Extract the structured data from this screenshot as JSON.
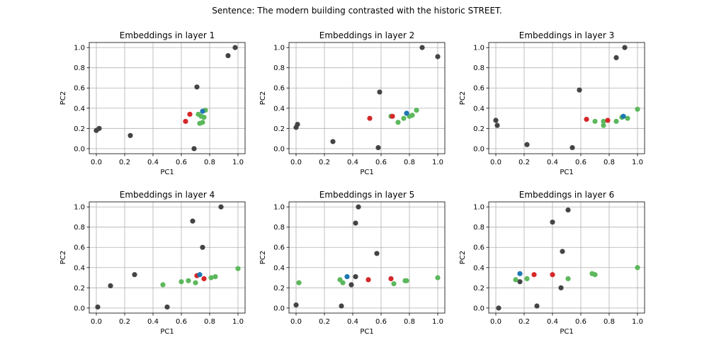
{
  "figure_title": "Sentence: The modern building contrasted with the historic STREET.",
  "colors": {
    "other": "#444444",
    "target": "#d62728",
    "blue": "#1f77b4",
    "green": "#5cb85c",
    "grid": "#b0b0b0"
  },
  "chart_data": [
    {
      "type": "scatter",
      "title": "Embeddings in layer 1",
      "xlabel": "PC1",
      "ylabel": "PC2",
      "xlim": [
        -0.05,
        1.05
      ],
      "ylim": [
        -0.05,
        1.05
      ],
      "xticks": [
        "0.0",
        "0.2",
        "0.4",
        "0.6",
        "0.8",
        "1.0"
      ],
      "yticks": [
        "0.0",
        "0.2",
        "0.4",
        "0.6",
        "0.8",
        "1.0"
      ],
      "grid": true,
      "series": [
        {
          "color_key": "other",
          "points": [
            [
              0.0,
              0.18
            ],
            [
              0.02,
              0.2
            ],
            [
              0.24,
              0.13
            ],
            [
              0.69,
              0.0
            ],
            [
              0.71,
              0.61
            ],
            [
              0.93,
              0.92
            ],
            [
              0.98,
              1.0
            ]
          ]
        },
        {
          "color_key": "green",
          "points": [
            [
              0.72,
              0.34
            ],
            [
              0.74,
              0.32
            ],
            [
              0.76,
              0.31
            ],
            [
              0.73,
              0.25
            ],
            [
              0.75,
              0.26
            ],
            [
              0.77,
              0.38
            ]
          ]
        },
        {
          "color_key": "target",
          "points": [
            [
              0.63,
              0.27
            ],
            [
              0.66,
              0.34
            ]
          ]
        },
        {
          "color_key": "blue",
          "points": [
            [
              0.75,
              0.37
            ]
          ]
        }
      ]
    },
    {
      "type": "scatter",
      "title": "Embeddings in layer 2",
      "xlabel": "PC1",
      "ylabel": "PC2",
      "xlim": [
        -0.05,
        1.05
      ],
      "ylim": [
        -0.05,
        1.05
      ],
      "xticks": [
        "0.0",
        "0.2",
        "0.4",
        "0.6",
        "0.8",
        "1.0"
      ],
      "yticks": [
        "0.0",
        "0.2",
        "0.4",
        "0.6",
        "0.8",
        "1.0"
      ],
      "grid": true,
      "series": [
        {
          "color_key": "other",
          "points": [
            [
              0.0,
              0.21
            ],
            [
              0.01,
              0.24
            ],
            [
              0.26,
              0.07
            ],
            [
              0.58,
              0.01
            ],
            [
              0.59,
              0.56
            ],
            [
              0.89,
              1.0
            ],
            [
              1.0,
              0.91
            ]
          ]
        },
        {
          "color_key": "green",
          "points": [
            [
              0.67,
              0.32
            ],
            [
              0.72,
              0.26
            ],
            [
              0.76,
              0.3
            ],
            [
              0.8,
              0.32
            ],
            [
              0.82,
              0.33
            ],
            [
              0.85,
              0.38
            ]
          ]
        },
        {
          "color_key": "target",
          "points": [
            [
              0.52,
              0.3
            ],
            [
              0.68,
              0.32
            ]
          ]
        },
        {
          "color_key": "blue",
          "points": [
            [
              0.78,
              0.35
            ]
          ]
        }
      ]
    },
    {
      "type": "scatter",
      "title": "Embeddings in layer 3",
      "xlabel": "PC1",
      "ylabel": "PC2",
      "xlim": [
        -0.05,
        1.05
      ],
      "ylim": [
        -0.05,
        1.05
      ],
      "xticks": [
        "0.0",
        "0.2",
        "0.4",
        "0.6",
        "0.8",
        "1.0"
      ],
      "yticks": [
        "0.0",
        "0.2",
        "0.4",
        "0.6",
        "0.8",
        "1.0"
      ],
      "grid": true,
      "series": [
        {
          "color_key": "other",
          "points": [
            [
              0.0,
              0.28
            ],
            [
              0.01,
              0.23
            ],
            [
              0.22,
              0.04
            ],
            [
              0.54,
              0.01
            ],
            [
              0.59,
              0.58
            ],
            [
              0.85,
              0.9
            ],
            [
              0.91,
              1.0
            ]
          ]
        },
        {
          "color_key": "green",
          "points": [
            [
              0.7,
              0.27
            ],
            [
              0.76,
              0.27
            ],
            [
              0.76,
              0.23
            ],
            [
              0.85,
              0.27
            ],
            [
              0.89,
              0.31
            ],
            [
              0.93,
              0.3
            ],
            [
              1.0,
              0.39
            ]
          ]
        },
        {
          "color_key": "target",
          "points": [
            [
              0.64,
              0.29
            ],
            [
              0.79,
              0.28
            ]
          ]
        },
        {
          "color_key": "blue",
          "points": [
            [
              0.9,
              0.32
            ]
          ]
        }
      ]
    },
    {
      "type": "scatter",
      "title": "Embeddings in layer 4",
      "xlabel": "PC1",
      "ylabel": "PC2",
      "xlim": [
        -0.05,
        1.05
      ],
      "ylim": [
        -0.05,
        1.05
      ],
      "xticks": [
        "0.0",
        "0.2",
        "0.4",
        "0.6",
        "0.8",
        "1.0"
      ],
      "yticks": [
        "0.0",
        "0.2",
        "0.4",
        "0.6",
        "0.8",
        "1.0"
      ],
      "grid": true,
      "series": [
        {
          "color_key": "other",
          "points": [
            [
              0.01,
              0.01
            ],
            [
              0.1,
              0.22
            ],
            [
              0.27,
              0.33
            ],
            [
              0.5,
              0.01
            ],
            [
              0.68,
              0.86
            ],
            [
              0.75,
              0.6
            ],
            [
              0.88,
              1.0
            ]
          ]
        },
        {
          "color_key": "green",
          "points": [
            [
              0.47,
              0.23
            ],
            [
              0.6,
              0.26
            ],
            [
              0.65,
              0.27
            ],
            [
              0.7,
              0.25
            ],
            [
              0.81,
              0.3
            ],
            [
              0.84,
              0.31
            ],
            [
              1.0,
              0.39
            ]
          ]
        },
        {
          "color_key": "target",
          "points": [
            [
              0.71,
              0.32
            ],
            [
              0.76,
              0.29
            ]
          ]
        },
        {
          "color_key": "blue",
          "points": [
            [
              0.73,
              0.33
            ]
          ]
        }
      ]
    },
    {
      "type": "scatter",
      "title": "Embeddings in layer 5",
      "xlabel": "PC1",
      "ylabel": "PC2",
      "xlim": [
        -0.05,
        1.05
      ],
      "ylim": [
        -0.05,
        1.05
      ],
      "xticks": [
        "0.0",
        "0.2",
        "0.4",
        "0.6",
        "0.8",
        "1.0"
      ],
      "yticks": [
        "0.0",
        "0.2",
        "0.4",
        "0.6",
        "0.8",
        "1.0"
      ],
      "grid": true,
      "series": [
        {
          "color_key": "other",
          "points": [
            [
              0.0,
              0.03
            ],
            [
              0.32,
              0.02
            ],
            [
              0.39,
              0.23
            ],
            [
              0.42,
              0.31
            ],
            [
              0.42,
              0.84
            ],
            [
              0.44,
              1.0
            ],
            [
              0.57,
              0.54
            ]
          ]
        },
        {
          "color_key": "green",
          "points": [
            [
              0.02,
              0.25
            ],
            [
              0.31,
              0.28
            ],
            [
              0.33,
              0.25
            ],
            [
              0.69,
              0.24
            ],
            [
              0.77,
              0.27
            ],
            [
              0.78,
              0.27
            ],
            [
              1.0,
              0.3
            ]
          ]
        },
        {
          "color_key": "target",
          "points": [
            [
              0.51,
              0.28
            ],
            [
              0.67,
              0.29
            ]
          ]
        },
        {
          "color_key": "blue",
          "points": [
            [
              0.36,
              0.31
            ]
          ]
        }
      ]
    },
    {
      "type": "scatter",
      "title": "Embeddings in layer 6",
      "xlabel": "PC1",
      "ylabel": "PC2",
      "xlim": [
        -0.05,
        1.05
      ],
      "ylim": [
        -0.05,
        1.05
      ],
      "xticks": [
        "0.0",
        "0.2",
        "0.4",
        "0.6",
        "0.8",
        "1.0"
      ],
      "yticks": [
        "0.0",
        "0.2",
        "0.4",
        "0.6",
        "0.8",
        "1.0"
      ],
      "grid": true,
      "series": [
        {
          "color_key": "other",
          "points": [
            [
              0.02,
              0.0
            ],
            [
              0.17,
              0.26
            ],
            [
              0.29,
              0.02
            ],
            [
              0.4,
              0.85
            ],
            [
              0.46,
              0.2
            ],
            [
              0.47,
              0.56
            ],
            [
              0.51,
              0.97
            ]
          ]
        },
        {
          "color_key": "green",
          "points": [
            [
              0.14,
              0.28
            ],
            [
              0.22,
              0.29
            ],
            [
              0.51,
              0.29
            ],
            [
              0.68,
              0.34
            ],
            [
              0.7,
              0.33
            ],
            [
              1.0,
              0.4
            ]
          ]
        },
        {
          "color_key": "target",
          "points": [
            [
              0.27,
              0.33
            ],
            [
              0.4,
              0.33
            ]
          ]
        },
        {
          "color_key": "blue",
          "points": [
            [
              0.17,
              0.34
            ]
          ]
        }
      ]
    }
  ]
}
